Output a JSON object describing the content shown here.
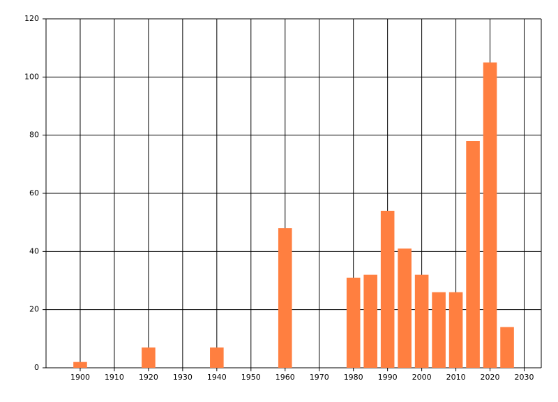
{
  "chart_data": {
    "type": "bar",
    "x": [
      1900,
      1920,
      1940,
      1960,
      1980,
      1985,
      1990,
      1995,
      2000,
      2005,
      2010,
      2015,
      2020,
      2025
    ],
    "values": [
      2,
      7,
      7,
      48,
      31,
      32,
      54,
      41,
      32,
      26,
      26,
      78,
      105,
      14
    ],
    "color": "#ff7f40",
    "xlim": [
      1890,
      2035
    ],
    "xticks": [
      1900,
      1910,
      1920,
      1930,
      1940,
      1950,
      1960,
      1970,
      1980,
      1990,
      2000,
      2010,
      2020,
      2030
    ],
    "ylim": [
      0,
      120
    ],
    "yticks": [
      0,
      20,
      40,
      60,
      80,
      100,
      120
    ],
    "grid": true
  }
}
